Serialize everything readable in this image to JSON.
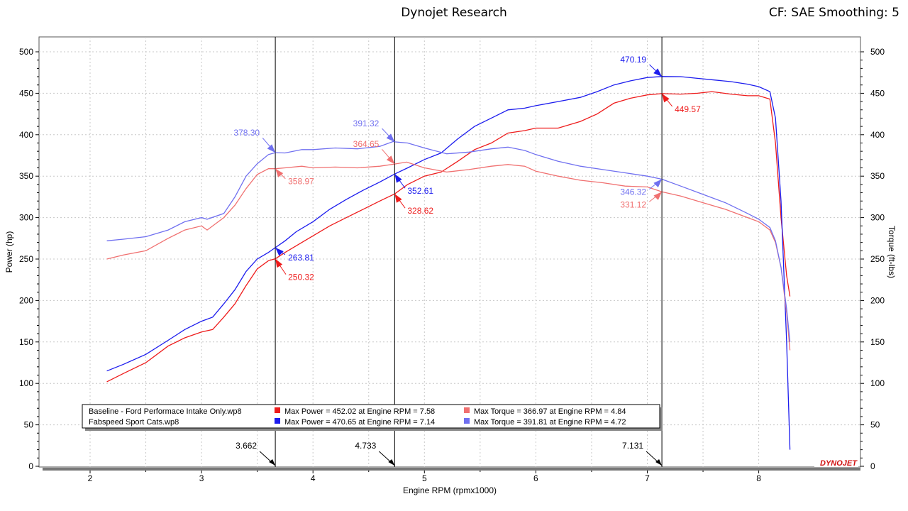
{
  "header": {
    "title": "Dynojet Research",
    "info": "CF: SAE Smoothing: 5"
  },
  "brand": "DYNOJET",
  "chart_data": {
    "type": "line",
    "xlabel": "Engine RPM (rpmx1000)",
    "ylabel_left": "Power (hp)",
    "ylabel_right": "Torque (ft-lbs)",
    "xlim": [
      1.6,
      8.5
    ],
    "ylim": [
      0,
      500
    ],
    "x_ticks": [
      2,
      3,
      4,
      5,
      6,
      7,
      8
    ],
    "y_ticks": [
      0,
      50,
      100,
      150,
      200,
      250,
      300,
      350,
      400,
      450,
      500
    ],
    "grid": true,
    "colors": {
      "base_power": "#ee1c1c",
      "mod_power": "#1c1cee",
      "base_torque": "#f07070",
      "mod_torque": "#7070f0"
    },
    "series": [
      {
        "key": "base_power",
        "x": [
          2.15,
          2.3,
          2.5,
          2.7,
          2.85,
          3.0,
          3.1,
          3.2,
          3.3,
          3.4,
          3.5,
          3.6,
          3.662,
          3.75,
          3.85,
          4.0,
          4.15,
          4.3,
          4.45,
          4.6,
          4.733,
          4.85,
          5.0,
          5.15,
          5.3,
          5.45,
          5.6,
          5.75,
          5.9,
          6.0,
          6.2,
          6.4,
          6.55,
          6.7,
          6.85,
          7.0,
          7.131,
          7.3,
          7.45,
          7.58,
          7.75,
          7.9,
          8.0,
          8.1,
          8.15,
          8.2,
          8.25,
          8.28
        ],
        "y": [
          102,
          112,
          125,
          145,
          155,
          162,
          165,
          180,
          196,
          218,
          238,
          248,
          250.32,
          258,
          266,
          278,
          290,
          300,
          310,
          320,
          328.62,
          340,
          350,
          355,
          368,
          382,
          390,
          402,
          405,
          408,
          408,
          416,
          425,
          438,
          444,
          448,
          449.57,
          449,
          450,
          452,
          449,
          447,
          447,
          443,
          390,
          300,
          230,
          205
        ]
      },
      {
        "key": "mod_power",
        "x": [
          2.15,
          2.3,
          2.5,
          2.7,
          2.85,
          3.0,
          3.1,
          3.2,
          3.3,
          3.4,
          3.5,
          3.6,
          3.662,
          3.75,
          3.85,
          4.0,
          4.15,
          4.3,
          4.45,
          4.6,
          4.733,
          4.85,
          5.0,
          5.15,
          5.3,
          5.45,
          5.6,
          5.75,
          5.9,
          6.0,
          6.2,
          6.4,
          6.55,
          6.7,
          6.85,
          7.0,
          7.131,
          7.3,
          7.45,
          7.6,
          7.75,
          7.9,
          8.0,
          8.1,
          8.15,
          8.2,
          8.25,
          8.28
        ],
        "y": [
          115,
          123,
          135,
          152,
          165,
          175,
          180,
          196,
          213,
          235,
          250,
          258,
          263.81,
          272,
          283,
          295,
          310,
          322,
          333,
          343,
          352.61,
          360,
          370,
          378,
          395,
          410,
          420,
          430,
          432,
          435,
          440,
          445,
          452,
          460,
          465,
          469,
          470.19,
          470,
          468,
          466,
          464,
          461,
          458,
          452,
          420,
          320,
          150,
          20
        ]
      },
      {
        "key": "base_torque",
        "x": [
          2.15,
          2.3,
          2.5,
          2.7,
          2.85,
          3.0,
          3.05,
          3.2,
          3.3,
          3.4,
          3.5,
          3.6,
          3.662,
          3.75,
          3.9,
          4.0,
          4.2,
          4.4,
          4.6,
          4.733,
          4.84,
          5.0,
          5.2,
          5.4,
          5.6,
          5.75,
          5.9,
          6.0,
          6.2,
          6.4,
          6.6,
          6.8,
          7.0,
          7.131,
          7.3,
          7.5,
          7.7,
          7.9,
          8.0,
          8.1,
          8.15,
          8.2,
          8.25,
          8.28
        ],
        "y": [
          250,
          255,
          260,
          275,
          285,
          290,
          285,
          300,
          315,
          335,
          352,
          359,
          358.97,
          360,
          362,
          360,
          361,
          360,
          362,
          364.65,
          366.97,
          360,
          355,
          358,
          362,
          364,
          362,
          356,
          350,
          345,
          342,
          338,
          337,
          331.12,
          326,
          318,
          310,
          300,
          295,
          285,
          270,
          240,
          185,
          140
        ]
      },
      {
        "key": "mod_torque",
        "x": [
          2.15,
          2.3,
          2.5,
          2.7,
          2.85,
          3.0,
          3.05,
          3.2,
          3.3,
          3.4,
          3.5,
          3.6,
          3.662,
          3.75,
          3.9,
          4.0,
          4.2,
          4.4,
          4.6,
          4.72,
          4.733,
          4.85,
          5.0,
          5.2,
          5.4,
          5.6,
          5.75,
          5.9,
          6.0,
          6.2,
          6.4,
          6.6,
          6.8,
          7.0,
          7.131,
          7.3,
          7.5,
          7.7,
          7.9,
          8.0,
          8.1,
          8.15,
          8.2,
          8.25,
          8.28
        ],
        "y": [
          272,
          274,
          277,
          285,
          295,
          300,
          298,
          305,
          325,
          350,
          365,
          376,
          378.3,
          378,
          382,
          382,
          384,
          383,
          386,
          391.81,
          391.32,
          390,
          384,
          377,
          379,
          383,
          385,
          381,
          376,
          368,
          362,
          358,
          354,
          350,
          346.32,
          338,
          328,
          318,
          305,
          298,
          288,
          272,
          240,
          190,
          150
        ]
      }
    ],
    "markers": [
      3.662,
      4.733,
      7.131
    ],
    "annotations": [
      {
        "series": "mod_power",
        "x": 3.662,
        "y": 263.81,
        "text": "263.81"
      },
      {
        "series": "base_power",
        "x": 3.662,
        "y": 250.32,
        "text": "250.32"
      },
      {
        "series": "mod_torque",
        "x": 3.662,
        "y": 378.3,
        "text": "378.30"
      },
      {
        "series": "base_torque",
        "x": 3.662,
        "y": 358.97,
        "text": "358.97"
      },
      {
        "series": "mod_power",
        "x": 4.733,
        "y": 352.61,
        "text": "352.61"
      },
      {
        "series": "base_power",
        "x": 4.733,
        "y": 328.62,
        "text": "328.62"
      },
      {
        "series": "mod_torque",
        "x": 4.733,
        "y": 391.32,
        "text": "391.32"
      },
      {
        "series": "base_torque",
        "x": 4.733,
        "y": 364.65,
        "text": "364.65"
      },
      {
        "series": "mod_power",
        "x": 7.131,
        "y": 470.19,
        "text": "470.19"
      },
      {
        "series": "base_power",
        "x": 7.131,
        "y": 449.57,
        "text": "449.57"
      },
      {
        "series": "mod_torque",
        "x": 7.131,
        "y": 346.32,
        "text": "346.32"
      },
      {
        "series": "base_torque",
        "x": 7.131,
        "y": 331.12,
        "text": "331.12"
      }
    ],
    "legend": {
      "placement": "bottom-left",
      "rows": [
        {
          "run": "Baseline - Ford Performace Intake Only.wp8",
          "power_key": "base_power",
          "power_text": "Max Power = 452.02 at Engine RPM = 7.58",
          "torque_key": "base_torque",
          "torque_text": "Max Torque = 366.97 at Engine RPM = 4.84"
        },
        {
          "run": "Fabspeed Sport Cats.wp8",
          "power_key": "mod_power",
          "power_text": "Max Power = 470.65 at Engine RPM = 7.14",
          "torque_key": "mod_torque",
          "torque_text": "Max Torque = 391.81 at Engine RPM = 4.72"
        }
      ]
    }
  }
}
